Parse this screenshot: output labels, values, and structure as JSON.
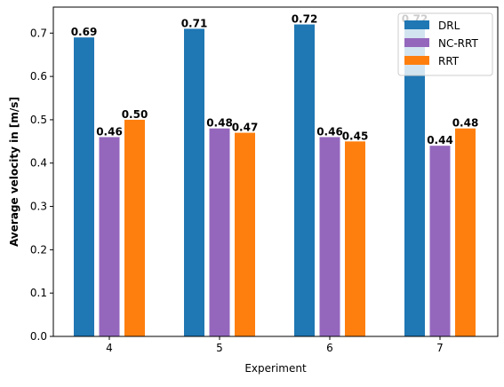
{
  "chart_data": {
    "type": "bar",
    "categories": [
      "4",
      "5",
      "6",
      "7"
    ],
    "series": [
      {
        "name": "DRL",
        "values": [
          0.69,
          0.71,
          0.72,
          0.72
        ],
        "labels": [
          "0.69",
          "0.71",
          "0.72",
          "0.72"
        ],
        "color": "#1f77b4"
      },
      {
        "name": "NC-RRT",
        "values": [
          0.46,
          0.48,
          0.46,
          0.44
        ],
        "labels": [
          "0.46",
          "0.48",
          "0.46",
          "0.44"
        ],
        "color": "#9467bd"
      },
      {
        "name": "RRT",
        "values": [
          0.5,
          0.47,
          0.45,
          0.48
        ],
        "labels": [
          "0.50",
          "0.47",
          "0.45",
          "0.48"
        ],
        "color": "#ff7f0e"
      }
    ],
    "title": "",
    "xlabel": "Experiment",
    "ylabel": "Average velocity in [m/s]",
    "ylim": [
      0,
      0.76
    ],
    "yticks": [
      "0.0",
      "0.1",
      "0.2",
      "0.3",
      "0.4",
      "0.5",
      "0.6",
      "0.7"
    ],
    "grid": false,
    "legend_position": "top-right"
  }
}
